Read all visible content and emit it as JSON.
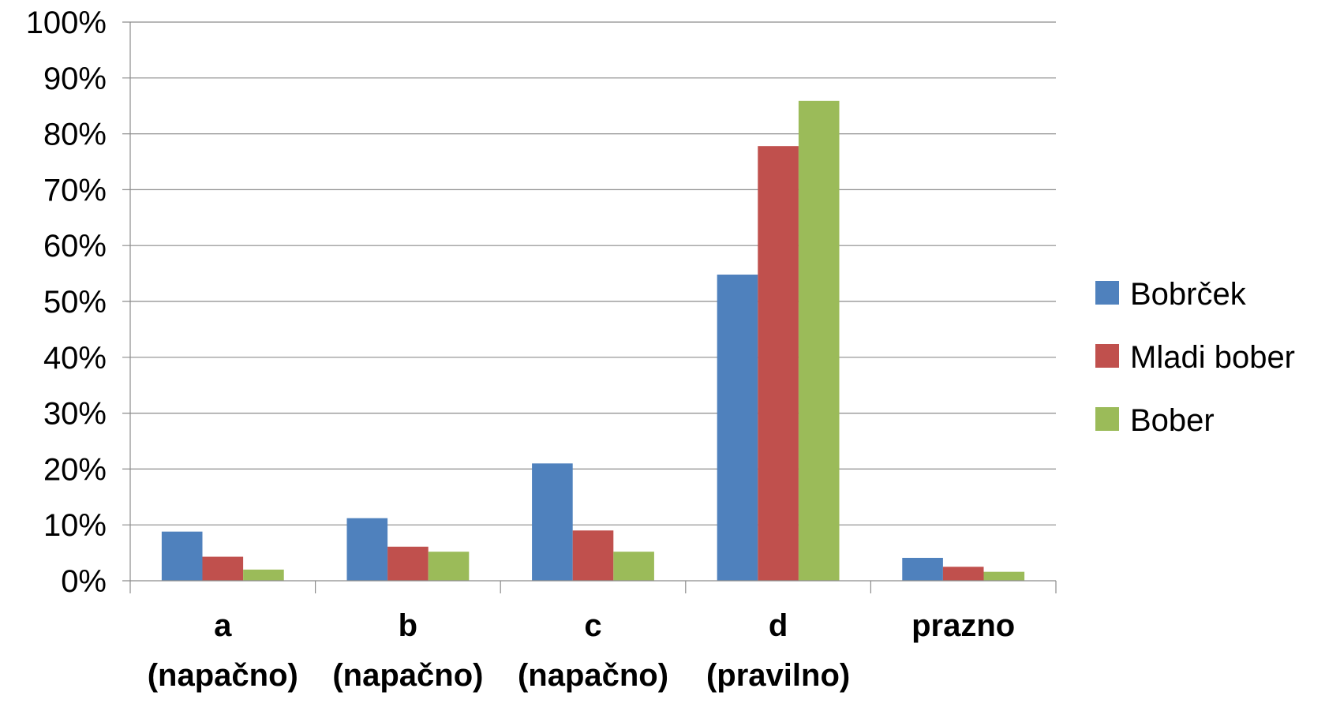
{
  "chart_data": {
    "type": "bar",
    "categories": [
      [
        "a",
        "(napačno)"
      ],
      [
        "b",
        "(napačno)"
      ],
      [
        "c",
        "(napačno)"
      ],
      [
        "d",
        "(pravilno)"
      ],
      [
        "prazno",
        ""
      ]
    ],
    "series": [
      {
        "name": "Bobrček",
        "color": "#4F81BD",
        "values": [
          8.8,
          11.2,
          21.0,
          54.8,
          4.1
        ]
      },
      {
        "name": "Mladi bober",
        "color": "#C0504D",
        "values": [
          4.3,
          6.1,
          9.0,
          77.8,
          2.5
        ]
      },
      {
        "name": "Bober",
        "color": "#9BBB59",
        "values": [
          2.0,
          5.2,
          5.2,
          85.9,
          1.6
        ]
      }
    ],
    "yticks": [
      "0%",
      "10%",
      "20%",
      "30%",
      "40%",
      "50%",
      "60%",
      "70%",
      "80%",
      "90%",
      "100%"
    ],
    "ylim": [
      0,
      100
    ],
    "ylabel": "",
    "xlabel": "",
    "title": "",
    "grid": true,
    "legend_position": "right"
  }
}
